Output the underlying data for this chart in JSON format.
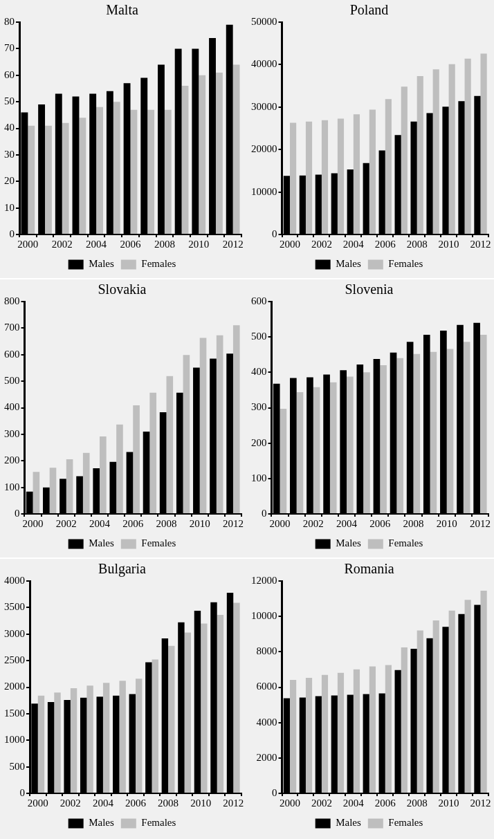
{
  "chart_data": [
    {
      "type": "bar",
      "title": "Malta",
      "categories": [
        "2000",
        null,
        "2002",
        null,
        "2004",
        null,
        "2006",
        null,
        "2008",
        null,
        "2010",
        null,
        "2012"
      ],
      "ylim": [
        0,
        80
      ],
      "yticks": [
        0,
        10,
        20,
        30,
        40,
        50,
        60,
        70,
        80
      ],
      "legend": "bottom",
      "series": [
        {
          "name": "Males",
          "color": "#000000",
          "values": [
            46,
            49,
            53,
            52,
            53,
            54,
            57,
            59,
            64,
            70,
            70,
            74,
            79
          ]
        },
        {
          "name": "Females",
          "color": "#bebebe",
          "values": [
            41,
            41,
            42,
            44,
            48,
            50,
            47,
            47,
            47,
            56,
            60,
            61,
            64
          ]
        }
      ]
    },
    {
      "type": "bar",
      "title": "Poland",
      "categories": [
        "2000",
        null,
        "2002",
        null,
        "2004",
        null,
        "2006",
        null,
        "2008",
        null,
        "2010",
        null,
        "2012"
      ],
      "ylim": [
        0,
        50000
      ],
      "yticks": [
        0,
        10000,
        20000,
        30000,
        40000,
        50000
      ],
      "legend": "bottom",
      "series": [
        {
          "name": "Males",
          "color": "#000000",
          "values": [
            13800,
            13900,
            14100,
            14400,
            15300,
            16800,
            19800,
            23400,
            26600,
            28600,
            30100,
            31400,
            32600
          ]
        },
        {
          "name": "Females",
          "color": "#bebebe",
          "values": [
            26300,
            26600,
            26900,
            27300,
            28300,
            29400,
            31900,
            34800,
            37300,
            38900,
            40100,
            41400,
            42600
          ]
        }
      ]
    },
    {
      "type": "bar",
      "title": "Slovakia",
      "categories": [
        "2000",
        null,
        "2002",
        null,
        "2004",
        null,
        "2006",
        null,
        "2008",
        null,
        "2010",
        null,
        "2012"
      ],
      "ylim": [
        0,
        800
      ],
      "yticks": [
        0,
        100,
        200,
        300,
        400,
        500,
        600,
        700,
        800
      ],
      "legend": "bottom",
      "series": [
        {
          "name": "Males",
          "color": "#000000",
          "values": [
            84,
            100,
            132,
            142,
            172,
            196,
            233,
            310,
            383,
            457,
            551,
            585,
            604
          ]
        },
        {
          "name": "Females",
          "color": "#bebebe",
          "values": [
            158,
            174,
            206,
            230,
            292,
            337,
            409,
            457,
            519,
            599,
            663,
            673,
            711
          ]
        }
      ]
    },
    {
      "type": "bar",
      "title": "Slovenia",
      "categories": [
        "2000",
        null,
        "2002",
        null,
        "2004",
        null,
        "2006",
        null,
        "2008",
        null,
        "2010",
        null,
        "2012"
      ],
      "ylim": [
        0,
        600
      ],
      "yticks": [
        0,
        100,
        200,
        300,
        400,
        500,
        600
      ],
      "legend": "bottom",
      "series": [
        {
          "name": "Males",
          "color": "#000000",
          "values": [
            368,
            384,
            386,
            394,
            406,
            422,
            438,
            456,
            486,
            506,
            518,
            534,
            540
          ]
        },
        {
          "name": "Females",
          "color": "#bebebe",
          "values": [
            297,
            344,
            358,
            372,
            388,
            400,
            420,
            440,
            452,
            458,
            466,
            486,
            506
          ]
        }
      ]
    },
    {
      "type": "bar",
      "title": "Bulgaria",
      "categories": [
        "2000",
        null,
        "2002",
        null,
        "2004",
        null,
        "2006",
        null,
        "2008",
        null,
        "2010",
        null,
        "2012"
      ],
      "ylim": [
        0,
        4000
      ],
      "yticks": [
        0,
        500,
        1000,
        1500,
        2000,
        2500,
        3000,
        3500,
        4000
      ],
      "legend": "bottom",
      "series": [
        {
          "name": "Males",
          "color": "#000000",
          "values": [
            1690,
            1720,
            1760,
            1800,
            1820,
            1840,
            1870,
            2470,
            2920,
            3220,
            3440,
            3600,
            3780
          ]
        },
        {
          "name": "Females",
          "color": "#bebebe",
          "values": [
            1840,
            1900,
            1980,
            2030,
            2080,
            2120,
            2160,
            2520,
            2780,
            3030,
            3200,
            3360,
            3590
          ]
        }
      ]
    },
    {
      "type": "bar",
      "title": "Romania",
      "categories": [
        "2000",
        null,
        "2002",
        null,
        "2004",
        null,
        "2006",
        null,
        "2008",
        null,
        "2010",
        null,
        "2012"
      ],
      "ylim": [
        0,
        12000
      ],
      "yticks": [
        0,
        2000,
        4000,
        6000,
        8000,
        10000,
        12000
      ],
      "legend": "bottom",
      "series": [
        {
          "name": "Males",
          "color": "#000000",
          "values": [
            5370,
            5410,
            5490,
            5530,
            5570,
            5610,
            5650,
            6970,
            8170,
            8770,
            9410,
            10130,
            10650
          ]
        },
        {
          "name": "Females",
          "color": "#bebebe",
          "values": [
            6410,
            6530,
            6690,
            6810,
            7010,
            7170,
            7250,
            8250,
            9210,
            9770,
            10330,
            10930,
            11450
          ]
        }
      ]
    }
  ]
}
